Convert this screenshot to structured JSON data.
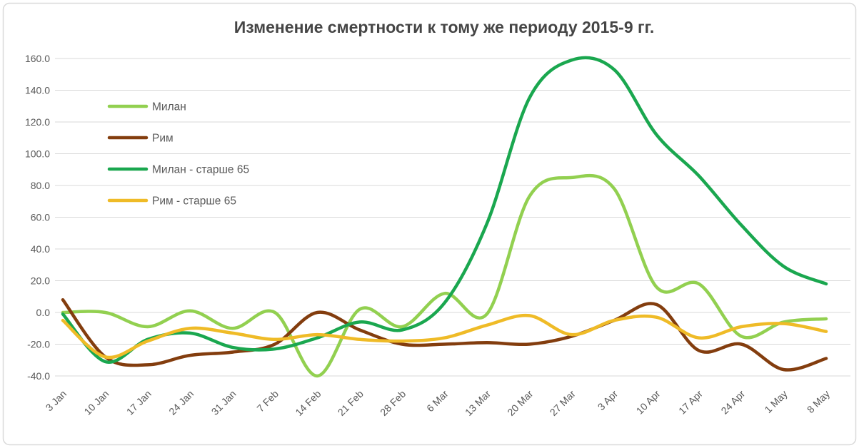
{
  "window": {
    "background": "#FFFFFF",
    "chart_border_color": "#D9D9D9"
  },
  "chart_data": {
    "type": "line",
    "title": "Изменение смертности к тому же периоду 2015-9 гг.",
    "smoothed": true,
    "grid": true,
    "legend_position": "upper-left-inside",
    "x_label_rotation": -45,
    "ylim": [
      -40,
      160
    ],
    "ytick_step": 20,
    "ytick_format": "one_decimal",
    "categories": [
      "3 Jan",
      "10 Jan",
      "17 Jan",
      "24 Jan",
      "31 Jan",
      "7 Feb",
      "14 Feb",
      "21 Feb",
      "28 Feb",
      "6 Mar",
      "13 Mar",
      "20 Mar",
      "27 Mar",
      "3 Apr",
      "10 Apr",
      "17 Apr",
      "24 Apr",
      "1 May",
      "8 May"
    ],
    "series": [
      {
        "name": "Милан",
        "color": "#92D050",
        "values": [
          0,
          0,
          -9,
          1,
          -10,
          0,
          -40,
          2,
          -9,
          12,
          -1,
          73,
          85,
          78,
          16,
          18,
          -15,
          -6,
          -4
        ]
      },
      {
        "name": "Рим",
        "color": "#833D0E",
        "values": [
          8,
          -28,
          -33,
          -27,
          -25,
          -20,
          0,
          -11,
          -20,
          -20,
          -19,
          -20,
          -15,
          -5,
          5,
          -24,
          -20,
          -36,
          -29
        ]
      },
      {
        "name": "Милан - старше 65",
        "color": "#1AA74F",
        "values": [
          -1,
          -31,
          -17,
          -13,
          -22,
          -23,
          -16,
          -6,
          -11,
          6,
          56,
          135,
          159,
          153,
          112,
          86,
          55,
          29,
          18
        ]
      },
      {
        "name": "Рим - старше 65",
        "color": "#EFBB27",
        "values": [
          -5,
          -28,
          -18,
          -10,
          -13,
          -17,
          -14,
          -17,
          -18,
          -16,
          -8,
          -2,
          -14,
          -5,
          -3,
          -16,
          -9,
          -7,
          -12
        ]
      }
    ]
  },
  "axis_style": {
    "label_color": "#595959",
    "grid_color": "#D9D9D9",
    "title_color": "#454545"
  }
}
